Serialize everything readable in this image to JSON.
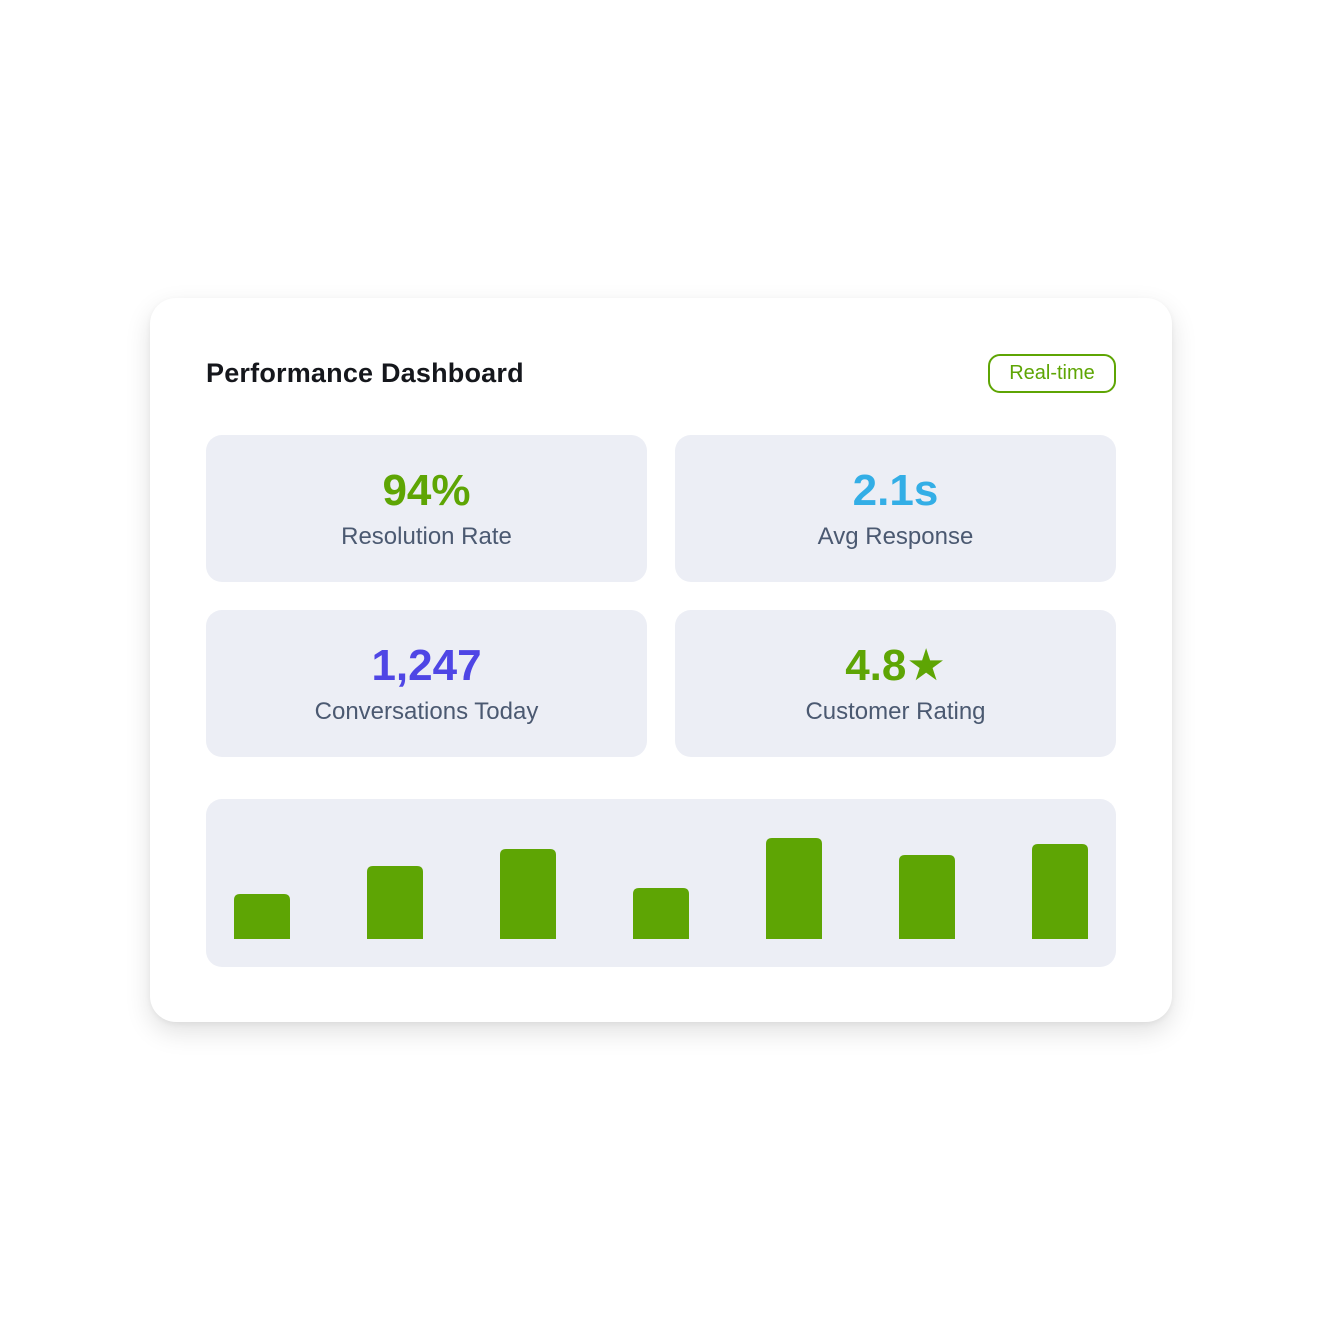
{
  "dashboard": {
    "title": "Performance Dashboard",
    "badge": "Real-time"
  },
  "metrics": [
    {
      "value": "94%",
      "label": "Resolution Rate",
      "color": "#5ea504"
    },
    {
      "value": "2.1s",
      "label": "Avg Response",
      "color": "#33aee6"
    },
    {
      "value": "1,247",
      "label": "Conversations Today",
      "color": "#4f46e5"
    },
    {
      "value": "4.8★",
      "label": "Customer Rating",
      "color": "#5ea504"
    }
  ],
  "chart_data": {
    "type": "bar",
    "values": [
      45,
      73,
      90,
      51,
      101,
      84,
      95
    ],
    "bar_color": "#5ea504"
  }
}
